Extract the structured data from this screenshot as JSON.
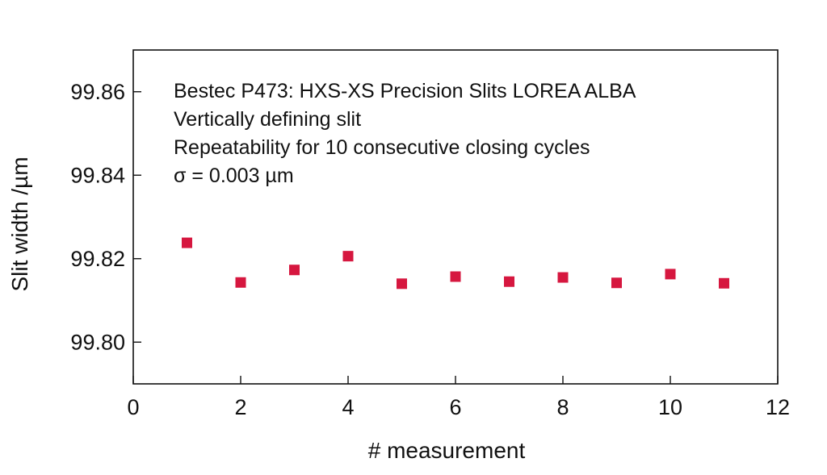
{
  "chart_data": {
    "type": "scatter",
    "title": "",
    "xlabel": "# measurement",
    "ylabel": "Slit width /µm",
    "xlim": [
      0,
      12
    ],
    "ylim": [
      99.79,
      99.87
    ],
    "xticks": [
      "0",
      "2",
      "4",
      "6",
      "8",
      "10",
      "12"
    ],
    "yticks": [
      "99.80",
      "99.82",
      "99.84",
      "99.86"
    ],
    "grid": false,
    "marker": "square",
    "color": "#d6173f",
    "annotations": [
      "Bestec P473: HXS-XS Precision Slits LOREA ALBA",
      "Vertically defining slit",
      "Repeatability for 10 consecutive closing cycles",
      "σ = 0.003 µm"
    ],
    "series": [
      {
        "x": [
          1,
          2,
          3,
          4,
          5,
          6,
          7,
          8,
          9,
          10,
          11
        ],
        "y": [
          99.8238,
          99.8143,
          99.8173,
          99.8206,
          99.814,
          99.8157,
          99.8145,
          99.8155,
          99.8142,
          99.8163,
          99.8141
        ]
      }
    ]
  }
}
